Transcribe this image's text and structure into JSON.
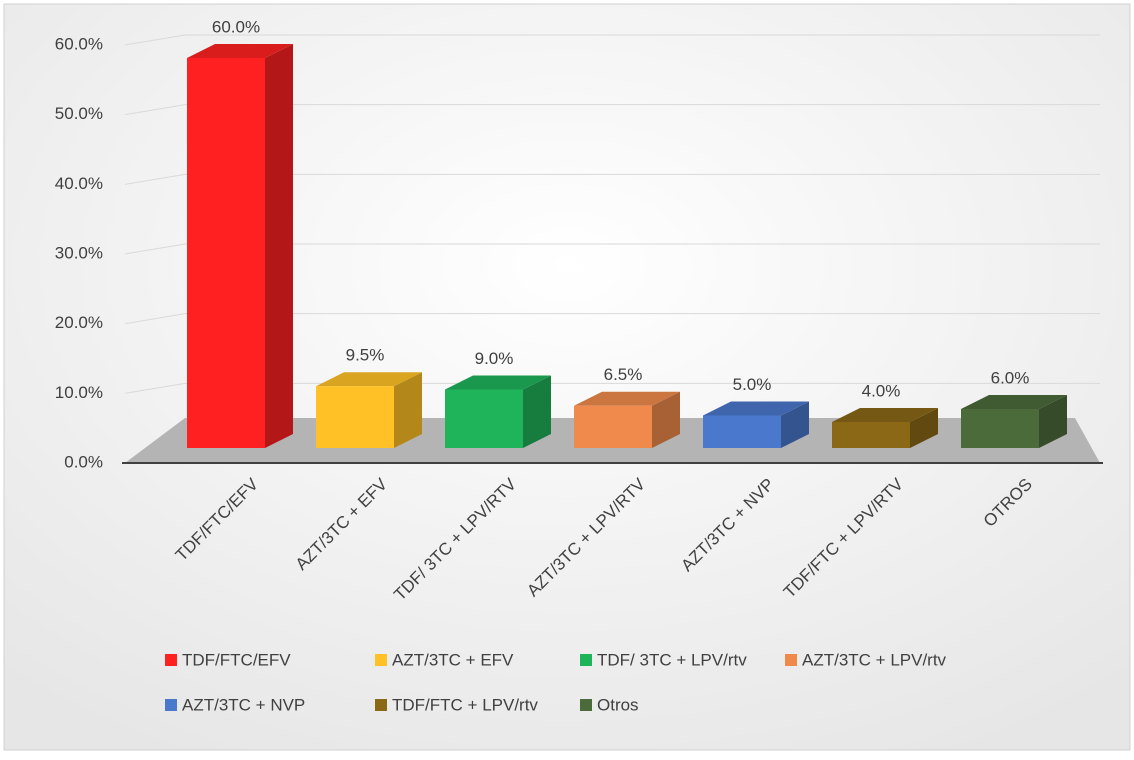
{
  "chart_data": {
    "type": "bar3d",
    "categories": [
      "TDF/FTC/EFV",
      "AZT/3TC + EFV",
      "TDF/ 3TC + LPV/RTV",
      "AZT/3TC + LPV/RTV",
      "AZT/3TC + NVP",
      "TDF/FTC + LPV/RTV",
      "OTROS"
    ],
    "values": [
      60,
      9.5,
      9,
      6.5,
      5,
      4,
      6
    ],
    "value_labels": [
      "60.0%",
      "9.5%",
      "9.0%",
      "6.5%",
      "5.0%",
      "4.0%",
      "6.0%"
    ],
    "colors": [
      "#ff2121",
      "#ffc125",
      "#1fb35a",
      "#ef8a4c",
      "#4a78cc",
      "#8a6816",
      "#4b6b3a"
    ],
    "legend_labels": [
      "TDF/FTC/EFV",
      "AZT/3TC + EFV",
      "TDF/ 3TC + LPV/rtv",
      "AZT/3TC + LPV/rtv",
      "AZT/3TC + NVP",
      "TDF/FTC + LPV/rtv",
      "Otros"
    ],
    "ylim": [
      0,
      60
    ],
    "yticks": [
      {
        "value": 0,
        "label": "0.0%"
      },
      {
        "value": 10,
        "label": "10.0%"
      },
      {
        "value": 20,
        "label": "20.0%"
      },
      {
        "value": 30,
        "label": "30.0%"
      },
      {
        "value": 40,
        "label": "40.0%"
      },
      {
        "value": 50,
        "label": "50.0%"
      },
      {
        "value": 60,
        "label": "60.0%"
      }
    ],
    "grid": true
  }
}
